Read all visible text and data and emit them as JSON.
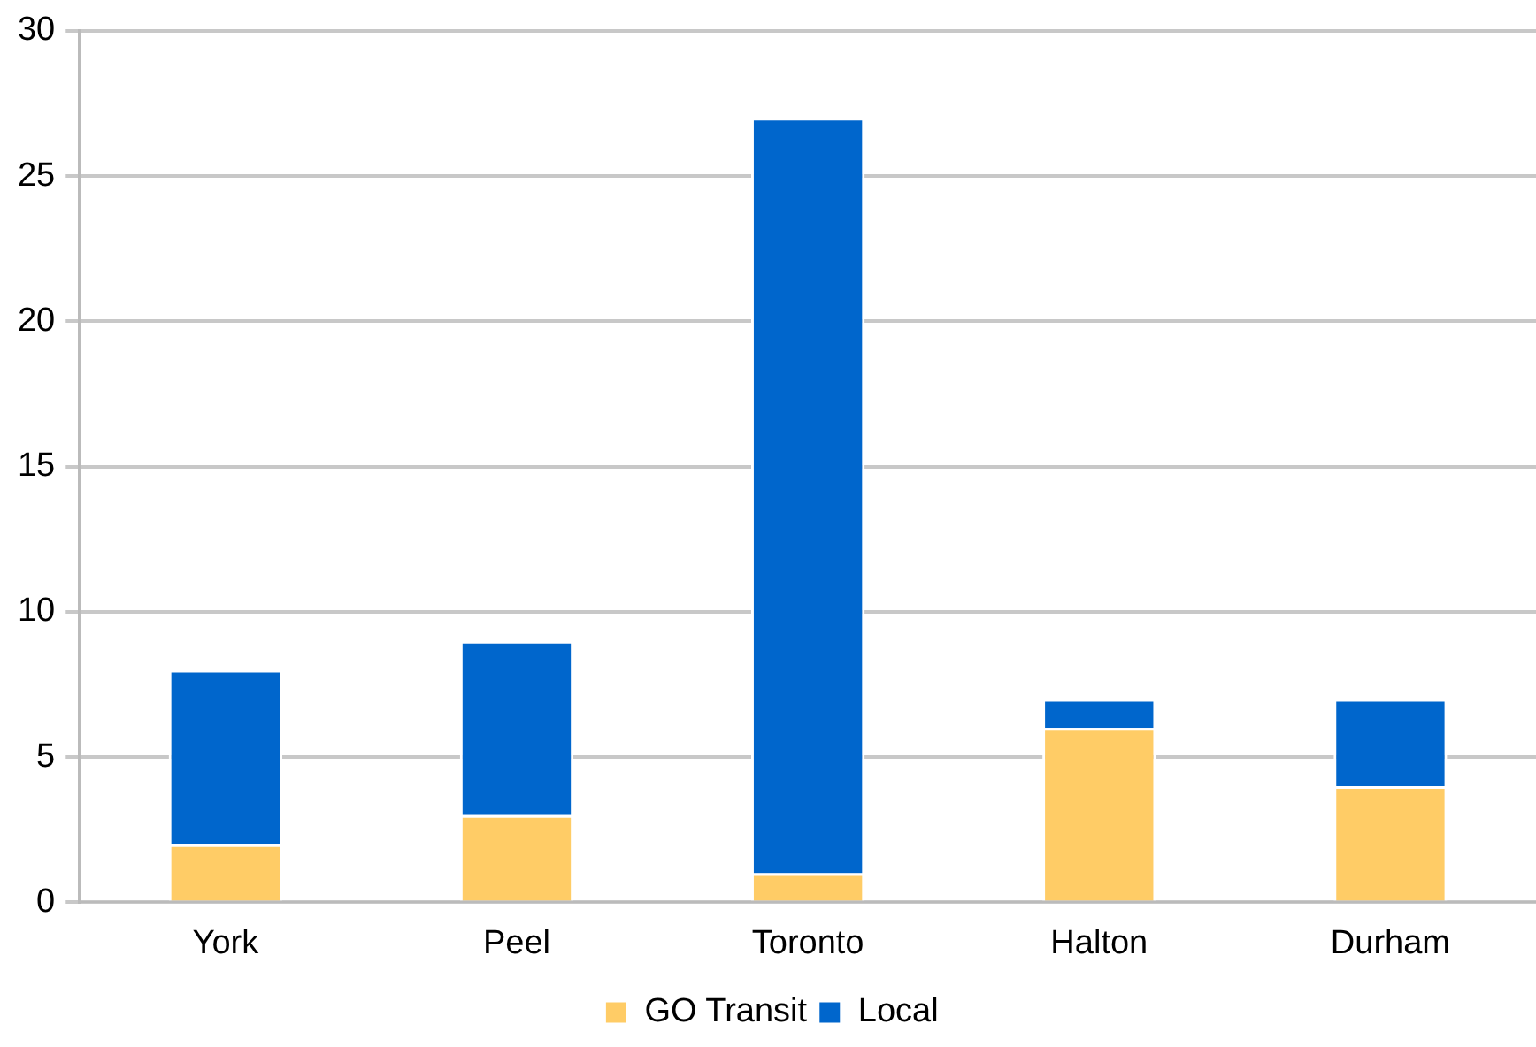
{
  "chart_data": {
    "type": "bar",
    "stacked": true,
    "categories": [
      "York",
      "Peel",
      "Toronto",
      "Halton",
      "Durham"
    ],
    "series": [
      {
        "name": "GO Transit",
        "color": "#ffcc66",
        "values": [
          2,
          3,
          1,
          6,
          4
        ]
      },
      {
        "name": "Local",
        "color": "#0066cc",
        "values": [
          6,
          6,
          26,
          1,
          3
        ]
      }
    ],
    "ylim": [
      0,
      30
    ],
    "yticks": [
      0,
      5,
      10,
      15,
      20,
      25,
      30
    ],
    "grid": "y",
    "legend": "bottom"
  }
}
